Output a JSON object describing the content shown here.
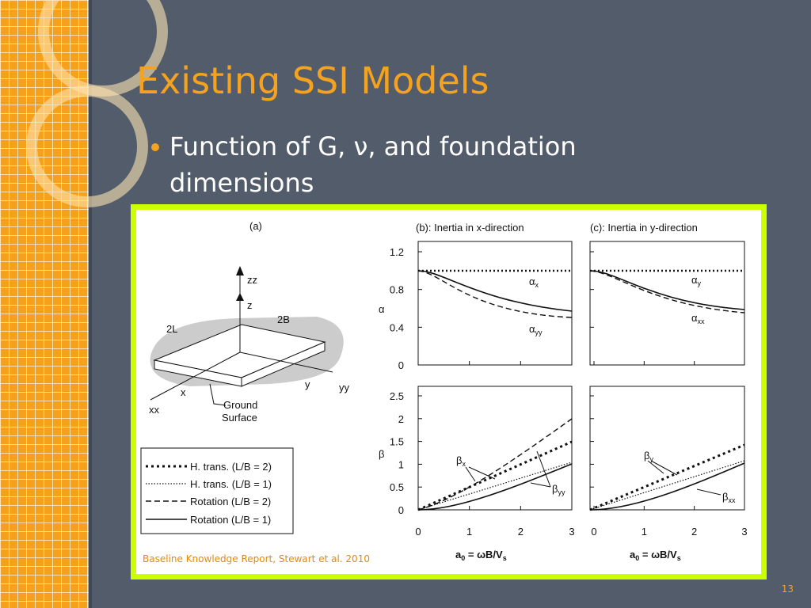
{
  "slide": {
    "title": "Existing SSI Models",
    "bullets": [
      "Function of G, ν, and foundation dimensions"
    ],
    "page_number": "13"
  },
  "figure": {
    "caption": "Baseline Knowledge Report, Stewart et al. 2010",
    "panel_a": {
      "label": "(a)",
      "zz": "zz",
      "z": "z",
      "width": "2B",
      "length": "2L",
      "y": "y",
      "yy": "yy",
      "x": "x",
      "xx": "xx",
      "ground": [
        "Ground",
        "Surface"
      ]
    },
    "legend": [
      "H. trans. (L/B = 2)",
      "H. trans. (L/B = 1)",
      "Rotation (L/B = 2)",
      "Rotation (L/B = 1)"
    ],
    "panel_b_title": "(b): Inertia in x-direction",
    "panel_c_title": "(c): Inertia in y-direction",
    "alpha_axis": "α",
    "beta_axis": "β",
    "alpha_ticks": [
      "1.2",
      "0.8",
      "0.4",
      "0"
    ],
    "beta_ticks": [
      "2.5",
      "2",
      "1.5",
      "1",
      "0.5",
      "0"
    ],
    "x_ticks": [
      "0",
      "1",
      "2",
      "3"
    ],
    "x_label": {
      "a": "a",
      "sub0": "0",
      "mid": " = ωB/V",
      "subs": "s"
    },
    "curve_labels": [
      {
        "symbol": "α",
        "sub": "x"
      },
      {
        "symbol": "α",
        "sub": "yy"
      },
      {
        "symbol": "α",
        "sub": "y"
      },
      {
        "symbol": "α",
        "sub": "xx"
      },
      {
        "symbol": "β",
        "sub": "x"
      },
      {
        "symbol": "β",
        "sub": "yy"
      },
      {
        "symbol": "β",
        "sub": "y"
      },
      {
        "symbol": "β",
        "sub": "xx"
      }
    ]
  }
}
